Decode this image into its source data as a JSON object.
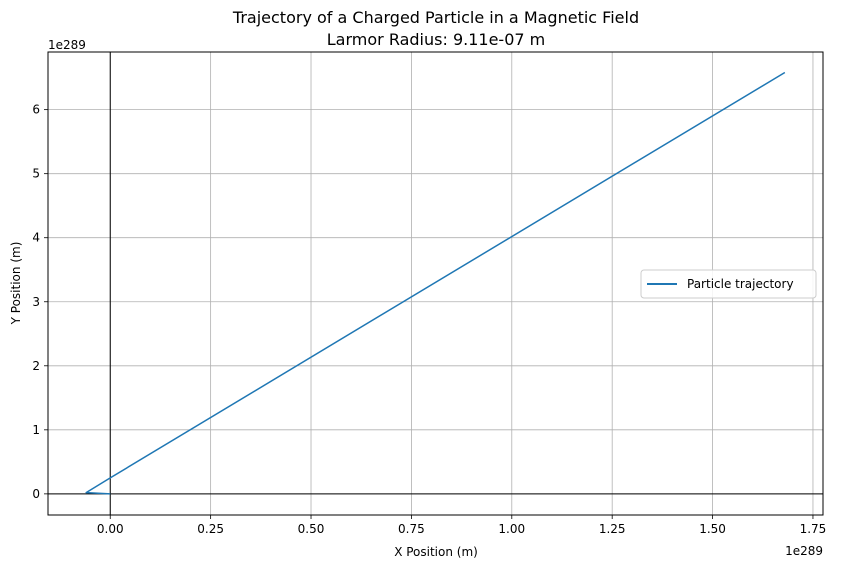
{
  "chart_data": {
    "type": "line",
    "title": "Trajectory of a Charged Particle in a Magnetic Field",
    "subtitle": "Larmor Radius: 9.11e-07 m",
    "xlabel": "X Position (m)",
    "ylabel": "Y Position (m)",
    "x_offset_text": "1e289",
    "y_offset_text": "1e289",
    "xlim": [
      -0.155,
      1.775
    ],
    "ylim": [
      -0.33,
      6.9
    ],
    "xticks": [
      0.0,
      0.25,
      0.5,
      0.75,
      1.0,
      1.25,
      1.5,
      1.75
    ],
    "xtick_labels": [
      "0.00",
      "0.25",
      "0.50",
      "0.75",
      "1.00",
      "1.25",
      "1.50",
      "1.75"
    ],
    "yticks": [
      0,
      1,
      2,
      3,
      4,
      5,
      6
    ],
    "ytick_labels": [
      "0",
      "1",
      "2",
      "3",
      "4",
      "5",
      "6"
    ],
    "grid": true,
    "legend_position": "center-right",
    "reference_lines": {
      "x": 0,
      "y": 0,
      "color": "#000000"
    },
    "series": [
      {
        "name": "Particle trajectory",
        "color": "#1f77b4",
        "points": [
          [
            0.0,
            0.0
          ],
          [
            -0.06,
            0.02
          ],
          [
            0.0,
            0.25
          ],
          [
            1.68,
            6.58
          ]
        ]
      }
    ]
  }
}
